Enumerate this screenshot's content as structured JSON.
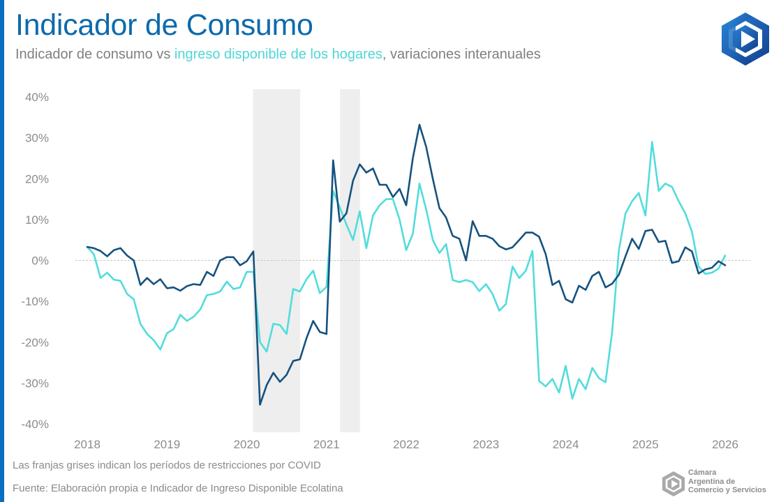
{
  "header": {
    "title": "Indicador de Consumo",
    "subtitle_prefix": "Indicador de consumo vs ",
    "subtitle_highlight": "ingreso disponible de los hogares",
    "subtitle_suffix": ", variaciones interanuales"
  },
  "colors": {
    "accent_bar": "#0a6fbf",
    "title": "#0d6aad",
    "consumo": "#15527f",
    "ingreso": "#52dcdc",
    "covid_band": "#eeeeee",
    "zero_line": "#c8c8c8"
  },
  "notes": {
    "covid": "Las franjas grises indican los períodos de restricciones por COVID",
    "source": "Fuente: Elaboración propia e Indicador de Ingreso Disponible Ecolatina"
  },
  "footer_logo": {
    "line1": "Cámara",
    "line2": "Argentina de",
    "line3": "Comercio y Servicios"
  },
  "chart_data": {
    "type": "line",
    "title": "Indicador de Consumo",
    "subtitle": "Indicador de consumo vs ingreso disponible de los hogares, variaciones interanuales",
    "xlabel": "",
    "ylabel": "",
    "ylim": [
      -40,
      40
    ],
    "yticks": [
      40,
      30,
      20,
      10,
      0,
      -10,
      -20,
      -30,
      -40
    ],
    "ytick_labels": [
      "40%",
      "30%",
      "20%",
      "10%",
      "0%",
      "-10%",
      "-20%",
      "-30%",
      "-40%"
    ],
    "xticks": [
      "2018",
      "2019",
      "2020",
      "2021",
      "2022",
      "2023",
      "2024",
      "2025",
      "2026"
    ],
    "x_start": "2018-01",
    "x_frequency": "monthly",
    "x_range_years": [
      2018,
      2026.4
    ],
    "grid": false,
    "zero_line": "dashed",
    "legend": "none (series identified by subtitle color)",
    "shaded_periods": [
      {
        "label": "COVID restrictions",
        "start": 2020.08,
        "end": 2020.67
      },
      {
        "label": "COVID restrictions",
        "start": 2021.17,
        "end": 2021.42
      }
    ],
    "series": [
      {
        "name": "Indicador de consumo",
        "color": "#15527f",
        "values": [
          3.3,
          3.0,
          2.3,
          1.0,
          2.5,
          3.0,
          1.2,
          0.0,
          -6.0,
          -4.3,
          -5.8,
          -4.6,
          -6.8,
          -6.6,
          -7.4,
          -6.3,
          -5.8,
          -6.0,
          -2.8,
          -3.8,
          0.0,
          0.8,
          0.8,
          -1.2,
          -0.2,
          2.2,
          -35.3,
          -30.5,
          -27.5,
          -29.7,
          -28.0,
          -24.6,
          -24.2,
          -19.0,
          -14.8,
          -17.5,
          -18.0,
          24.5,
          9.5,
          11.5,
          19.5,
          23.5,
          21.5,
          22.5,
          18.5,
          18.5,
          15.5,
          17.5,
          13.5,
          25.0,
          33.2,
          27.8,
          20.0,
          12.8,
          10.5,
          6.0,
          5.3,
          0.0,
          9.6,
          6.0,
          6.0,
          5.3,
          3.5,
          2.7,
          3.2,
          5.0,
          6.8,
          6.8,
          5.8,
          1.5,
          -6.0,
          -5.0,
          -9.5,
          -10.3,
          -6.2,
          -7.2,
          -3.8,
          -2.8,
          -6.6,
          -5.7,
          -3.5,
          1.0,
          5.3,
          2.8,
          7.2,
          7.5,
          4.5,
          4.8,
          -0.6,
          -0.2,
          3.2,
          2.2,
          -3.2,
          -2.2,
          -1.8,
          -0.2,
          -1.2
        ]
      },
      {
        "name": "Ingreso disponible de los hogares",
        "color": "#52dcdc",
        "values": [
          3.3,
          1.5,
          -4.3,
          -3.0,
          -4.7,
          -5.0,
          -8.2,
          -9.5,
          -15.5,
          -18.0,
          -19.5,
          -21.8,
          -17.8,
          -16.8,
          -13.3,
          -14.8,
          -13.8,
          -12.0,
          -8.5,
          -8.2,
          -7.6,
          -5.2,
          -7.0,
          -6.6,
          -2.8,
          -2.8,
          -20.0,
          -22.3,
          -15.5,
          -15.8,
          -18.0,
          -7.0,
          -7.6,
          -4.6,
          -2.5,
          -8.0,
          -6.5,
          17.0,
          13.0,
          8.8,
          5.0,
          12.0,
          3.0,
          11.0,
          13.5,
          15.0,
          15.0,
          10.0,
          2.5,
          6.5,
          18.8,
          12.5,
          5.0,
          1.8,
          4.0,
          -4.8,
          -5.3,
          -4.8,
          -5.3,
          -7.5,
          -5.8,
          -8.2,
          -12.3,
          -10.7,
          -1.5,
          -4.3,
          -2.5,
          2.3,
          -29.5,
          -30.8,
          -29.0,
          -32.3,
          -25.8,
          -33.8,
          -29.0,
          -31.5,
          -26.3,
          -28.8,
          -29.8,
          -17.5,
          2.5,
          11.5,
          14.5,
          16.5,
          11.0,
          29.0,
          17.0,
          18.8,
          18.0,
          14.5,
          11.5,
          7.0,
          -1.5,
          -3.3,
          -3.0,
          -2.0,
          1.2
        ]
      }
    ]
  }
}
